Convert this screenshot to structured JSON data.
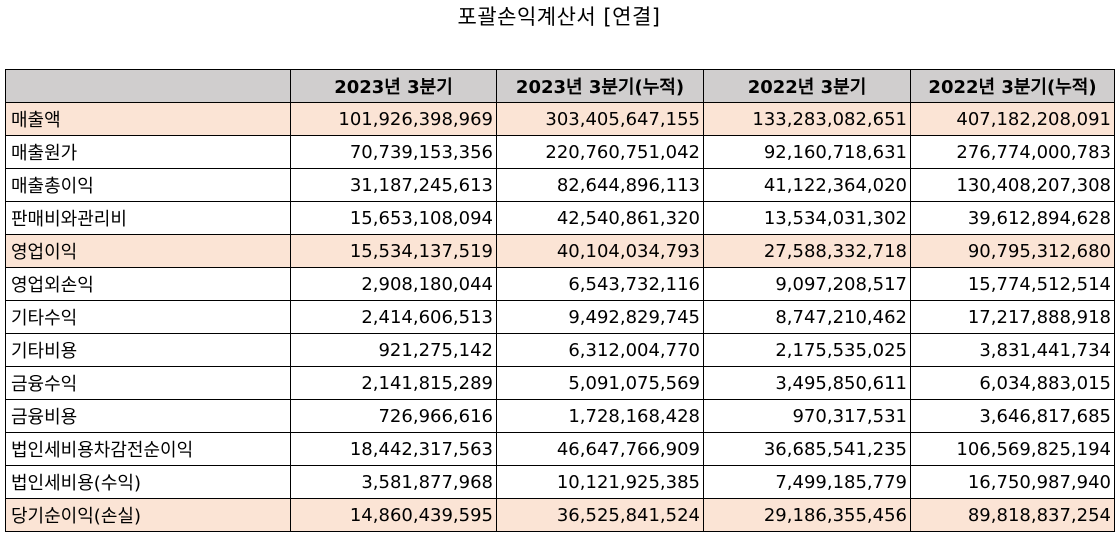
{
  "title": "포괄손익계산서 [연결]",
  "header": {
    "blank": "",
    "columns": [
      "2023년 3분기",
      "2023년 3분기(누적)",
      "2022년 3분기",
      "2022년 3분기(누적)"
    ]
  },
  "highlight_color": "#fbe4d5",
  "header_color": "#d0cece",
  "rows": [
    {
      "label": "매출액",
      "highlight": true,
      "values": [
        "101,926,398,969",
        "303,405,647,155",
        "133,283,082,651",
        "407,182,208,091"
      ]
    },
    {
      "label": "매출원가",
      "highlight": false,
      "values": [
        "70,739,153,356",
        "220,760,751,042",
        "92,160,718,631",
        "276,774,000,783"
      ]
    },
    {
      "label": "매출총이익",
      "highlight": false,
      "values": [
        "31,187,245,613",
        "82,644,896,113",
        "41,122,364,020",
        "130,408,207,308"
      ]
    },
    {
      "label": "판매비와관리비",
      "highlight": false,
      "values": [
        "15,653,108,094",
        "42,540,861,320",
        "13,534,031,302",
        "39,612,894,628"
      ]
    },
    {
      "label": "영업이익",
      "highlight": true,
      "values": [
        "15,534,137,519",
        "40,104,034,793",
        "27,588,332,718",
        "90,795,312,680"
      ]
    },
    {
      "label": "영업외손익",
      "highlight": false,
      "values": [
        "2,908,180,044",
        "6,543,732,116",
        "9,097,208,517",
        "15,774,512,514"
      ]
    },
    {
      "label": "기타수익",
      "highlight": false,
      "values": [
        "2,414,606,513",
        "9,492,829,745",
        "8,747,210,462",
        "17,217,888,918"
      ]
    },
    {
      "label": "기타비용",
      "highlight": false,
      "values": [
        "921,275,142",
        "6,312,004,770",
        "2,175,535,025",
        "3,831,441,734"
      ]
    },
    {
      "label": "금융수익",
      "highlight": false,
      "values": [
        "2,141,815,289",
        "5,091,075,569",
        "3,495,850,611",
        "6,034,883,015"
      ]
    },
    {
      "label": "금융비용",
      "highlight": false,
      "values": [
        "726,966,616",
        "1,728,168,428",
        "970,317,531",
        "3,646,817,685"
      ]
    },
    {
      "label": "법인세비용차감전순이익",
      "highlight": false,
      "values": [
        "18,442,317,563",
        "46,647,766,909",
        "36,685,541,235",
        "106,569,825,194"
      ]
    },
    {
      "label": "법인세비용(수익)",
      "highlight": false,
      "values": [
        "3,581,877,968",
        "10,121,925,385",
        "7,499,185,779",
        "16,750,987,940"
      ]
    },
    {
      "label": "당기순이익(손실)",
      "highlight": true,
      "values": [
        "14,860,439,595",
        "36,525,841,524",
        "29,186,355,456",
        "89,818,837,254"
      ]
    }
  ]
}
